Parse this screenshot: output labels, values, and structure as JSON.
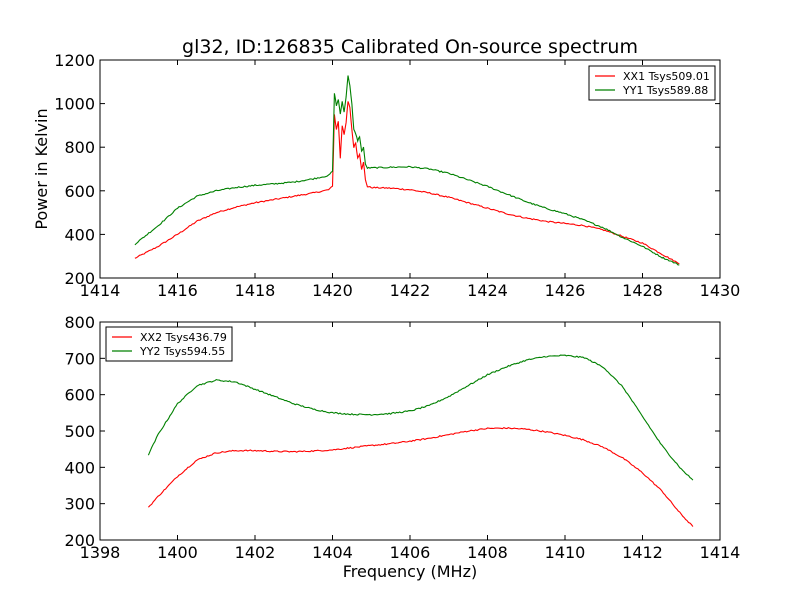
{
  "figure": {
    "title": "gl32, ID:126835 Calibrated On-source spectrum",
    "xlabel": "Frequency (MHz)"
  },
  "colors": {
    "XX": "#ff0000",
    "YY": "#008000"
  },
  "chart_data": [
    {
      "type": "line",
      "title": "gl32, ID:126835 Calibrated On-source spectrum",
      "xlabel": "",
      "ylabel": "Power in Kelvin",
      "xlim": [
        1414,
        1430
      ],
      "ylim": [
        200,
        1200
      ],
      "xticks": [
        1414,
        1416,
        1418,
        1420,
        1422,
        1424,
        1426,
        1428,
        1430
      ],
      "yticks": [
        200,
        400,
        600,
        800,
        1000,
        1200
      ],
      "legend": "top-right",
      "grid": false,
      "series": [
        {
          "name": "XX1 Tsys509.01",
          "color": "#ff0000",
          "x": [
            1414.9,
            1415.5,
            1416.0,
            1416.5,
            1417.0,
            1417.5,
            1418.0,
            1418.5,
            1419.0,
            1419.5,
            1419.9,
            1420.0,
            1420.05,
            1420.1,
            1420.15,
            1420.2,
            1420.25,
            1420.3,
            1420.35,
            1420.4,
            1420.45,
            1420.5,
            1420.55,
            1420.6,
            1420.65,
            1420.7,
            1420.75,
            1420.8,
            1420.85,
            1420.9,
            1421.0,
            1421.5,
            1422.0,
            1422.5,
            1423.0,
            1423.5,
            1424.0,
            1424.5,
            1425.0,
            1425.5,
            1426.0,
            1426.5,
            1427.0,
            1427.5,
            1428.0,
            1428.5,
            1428.95
          ],
          "y": [
            290,
            345,
            400,
            460,
            500,
            525,
            545,
            560,
            575,
            590,
            605,
            620,
            950,
            880,
            920,
            750,
            900,
            860,
            910,
            1010,
            980,
            880,
            800,
            820,
            750,
            770,
            700,
            730,
            650,
            620,
            615,
            612,
            605,
            590,
            570,
            545,
            520,
            495,
            475,
            460,
            450,
            440,
            420,
            390,
            360,
            310,
            265
          ]
        },
        {
          "name": "YY1 Tsys589.88",
          "color": "#008000",
          "x": [
            1414.9,
            1415.5,
            1416.0,
            1416.5,
            1417.0,
            1417.5,
            1418.0,
            1418.5,
            1419.0,
            1419.5,
            1419.9,
            1420.0,
            1420.05,
            1420.1,
            1420.15,
            1420.2,
            1420.25,
            1420.3,
            1420.35,
            1420.4,
            1420.45,
            1420.5,
            1420.55,
            1420.6,
            1420.65,
            1420.7,
            1420.75,
            1420.8,
            1420.85,
            1420.9,
            1421.0,
            1421.5,
            1422.0,
            1422.5,
            1423.0,
            1423.5,
            1424.0,
            1424.5,
            1425.0,
            1425.5,
            1426.0,
            1426.5,
            1427.0,
            1427.5,
            1428.0,
            1428.5,
            1428.95
          ],
          "y": [
            355,
            440,
            520,
            575,
            600,
            615,
            625,
            632,
            640,
            655,
            670,
            690,
            1050,
            990,
            1020,
            950,
            1010,
            960,
            1030,
            1130,
            1080,
            1000,
            880,
            860,
            830,
            850,
            780,
            800,
            720,
            705,
            705,
            708,
            710,
            700,
            680,
            650,
            620,
            585,
            550,
            520,
            495,
            465,
            430,
            385,
            345,
            295,
            260
          ]
        }
      ]
    },
    {
      "type": "line",
      "title": "",
      "xlabel": "Frequency (MHz)",
      "ylabel": "",
      "xlim": [
        1398,
        1414
      ],
      "ylim": [
        200,
        800
      ],
      "xticks": [
        1398,
        1400,
        1402,
        1404,
        1406,
        1408,
        1410,
        1412,
        1414
      ],
      "yticks": [
        200,
        300,
        400,
        500,
        600,
        700,
        800
      ],
      "legend": "top-left",
      "grid": false,
      "series": [
        {
          "name": "XX2 Tsys436.79",
          "color": "#ff0000",
          "x": [
            1399.25,
            1399.5,
            1400.0,
            1400.5,
            1401.0,
            1401.5,
            1402.0,
            1402.5,
            1403.0,
            1403.5,
            1404.0,
            1404.5,
            1405.0,
            1405.5,
            1406.0,
            1406.5,
            1407.0,
            1407.5,
            1408.0,
            1408.5,
            1409.0,
            1409.5,
            1410.0,
            1410.5,
            1411.0,
            1411.5,
            1412.0,
            1412.5,
            1413.0,
            1413.3
          ],
          "y": [
            290,
            320,
            375,
            420,
            440,
            446,
            446,
            444,
            443,
            445,
            448,
            454,
            460,
            465,
            472,
            480,
            490,
            500,
            507,
            508,
            505,
            498,
            488,
            475,
            455,
            425,
            385,
            335,
            270,
            237
          ]
        },
        {
          "name": "YY2 Tsys594.55",
          "color": "#008000",
          "x": [
            1399.25,
            1399.5,
            1400.0,
            1400.5,
            1401.0,
            1401.5,
            1402.0,
            1402.5,
            1403.0,
            1403.5,
            1404.0,
            1404.5,
            1405.0,
            1405.5,
            1406.0,
            1406.5,
            1407.0,
            1407.5,
            1408.0,
            1408.5,
            1409.0,
            1409.5,
            1410.0,
            1410.5,
            1411.0,
            1411.5,
            1412.0,
            1412.5,
            1413.0,
            1413.3
          ],
          "y": [
            435,
            490,
            575,
            625,
            640,
            635,
            615,
            595,
            575,
            560,
            550,
            546,
            545,
            548,
            555,
            570,
            595,
            625,
            655,
            677,
            695,
            705,
            708,
            702,
            675,
            620,
            540,
            460,
            395,
            365
          ]
        }
      ]
    }
  ]
}
